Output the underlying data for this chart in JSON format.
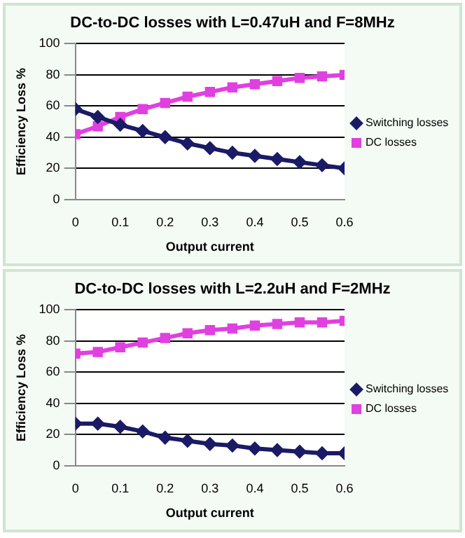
{
  "chart_data": [
    {
      "type": "line",
      "title": "DC-to-DC losses with L=0.47uH and F=8MHz",
      "xlabel": "Output current",
      "ylabel": "Efficiency Loss %",
      "x": [
        0,
        0.05,
        0.1,
        0.15,
        0.2,
        0.25,
        0.3,
        0.35,
        0.4,
        0.45,
        0.5,
        0.55,
        0.6
      ],
      "series": [
        {
          "name": "Switching losses",
          "color": "#1a1a66",
          "marker": "diamond",
          "values": [
            58,
            53,
            48,
            44,
            40,
            36,
            33,
            30,
            28,
            26,
            24,
            22,
            20
          ]
        },
        {
          "name": "DC losses",
          "color": "#e040e0",
          "marker": "square",
          "values": [
            42,
            47,
            53,
            58,
            62,
            66,
            69,
            72,
            74,
            76,
            78,
            79,
            80
          ]
        }
      ],
      "xlim": [
        0,
        0.6
      ],
      "xticks": [
        0,
        0.1,
        0.2,
        0.3,
        0.4,
        0.5,
        0.6
      ],
      "ylim": [
        0,
        100
      ],
      "yticks": [
        0,
        20,
        40,
        60,
        80,
        100
      ],
      "grid": "y",
      "legend": "right"
    },
    {
      "type": "line",
      "title": "DC-to-DC losses with L=2.2uH and F=2MHz",
      "xlabel": "Output current",
      "ylabel": "Efficiency Loss %",
      "x": [
        0,
        0.05,
        0.1,
        0.15,
        0.2,
        0.25,
        0.3,
        0.35,
        0.4,
        0.45,
        0.5,
        0.55,
        0.6
      ],
      "series": [
        {
          "name": "Switching losses",
          "color": "#1a1a66",
          "marker": "diamond",
          "values": [
            27,
            27,
            25,
            22,
            18,
            16,
            14,
            13,
            11,
            10,
            9,
            8,
            8
          ]
        },
        {
          "name": "DC losses",
          "color": "#e040e0",
          "marker": "square",
          "values": [
            72,
            73,
            76,
            79,
            82,
            85,
            87,
            88,
            90,
            91,
            92,
            92,
            93
          ]
        }
      ],
      "xlim": [
        0,
        0.6
      ],
      "xticks": [
        0,
        0.1,
        0.2,
        0.3,
        0.4,
        0.5,
        0.6
      ],
      "ylim": [
        0,
        100
      ],
      "yticks": [
        0,
        20,
        40,
        60,
        80,
        100
      ],
      "grid": "y",
      "legend": "right"
    }
  ]
}
